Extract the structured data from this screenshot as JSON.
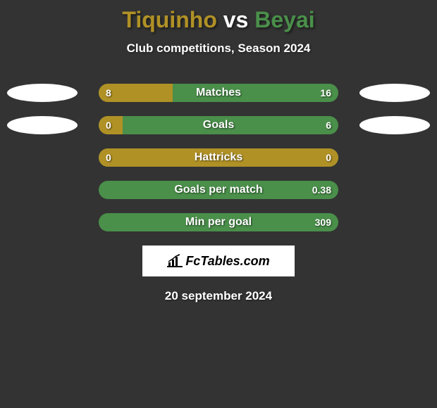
{
  "title": {
    "player1": "Tiquinho",
    "vs": "vs",
    "player2": "Beyai"
  },
  "subtitle": "Club competitions, Season 2024",
  "colors": {
    "player1": "#b09126",
    "player2": "#4a8f4a",
    "ellipse_fill": "#ffffff",
    "bar_track_bg": "#5a7a5a"
  },
  "bars": [
    {
      "label": "Matches",
      "left_value": "8",
      "right_value": "16",
      "left_width_pct": 31,
      "right_width_pct": 69,
      "left_color": "#b09126",
      "right_color": "#4a8f4a",
      "show_ellipses": true
    },
    {
      "label": "Goals",
      "left_value": "0",
      "right_value": "6",
      "left_width_pct": 10,
      "right_width_pct": 90,
      "left_color": "#b09126",
      "right_color": "#4a8f4a",
      "show_ellipses": true
    },
    {
      "label": "Hattricks",
      "left_value": "0",
      "right_value": "0",
      "left_width_pct": 100,
      "right_width_pct": 0,
      "left_color": "#b09126",
      "right_color": "#4a8f4a",
      "show_ellipses": false
    },
    {
      "label": "Goals per match",
      "left_value": "",
      "right_value": "0.38",
      "left_width_pct": 0,
      "right_width_pct": 100,
      "left_color": "#b09126",
      "right_color": "#4a8f4a",
      "show_ellipses": false
    },
    {
      "label": "Min per goal",
      "left_value": "",
      "right_value": "309",
      "left_width_pct": 0,
      "right_width_pct": 100,
      "left_color": "#b09126",
      "right_color": "#4a8f4a",
      "show_ellipses": false
    }
  ],
  "logo_text": "FcTables.com",
  "date_text": "20 september 2024"
}
